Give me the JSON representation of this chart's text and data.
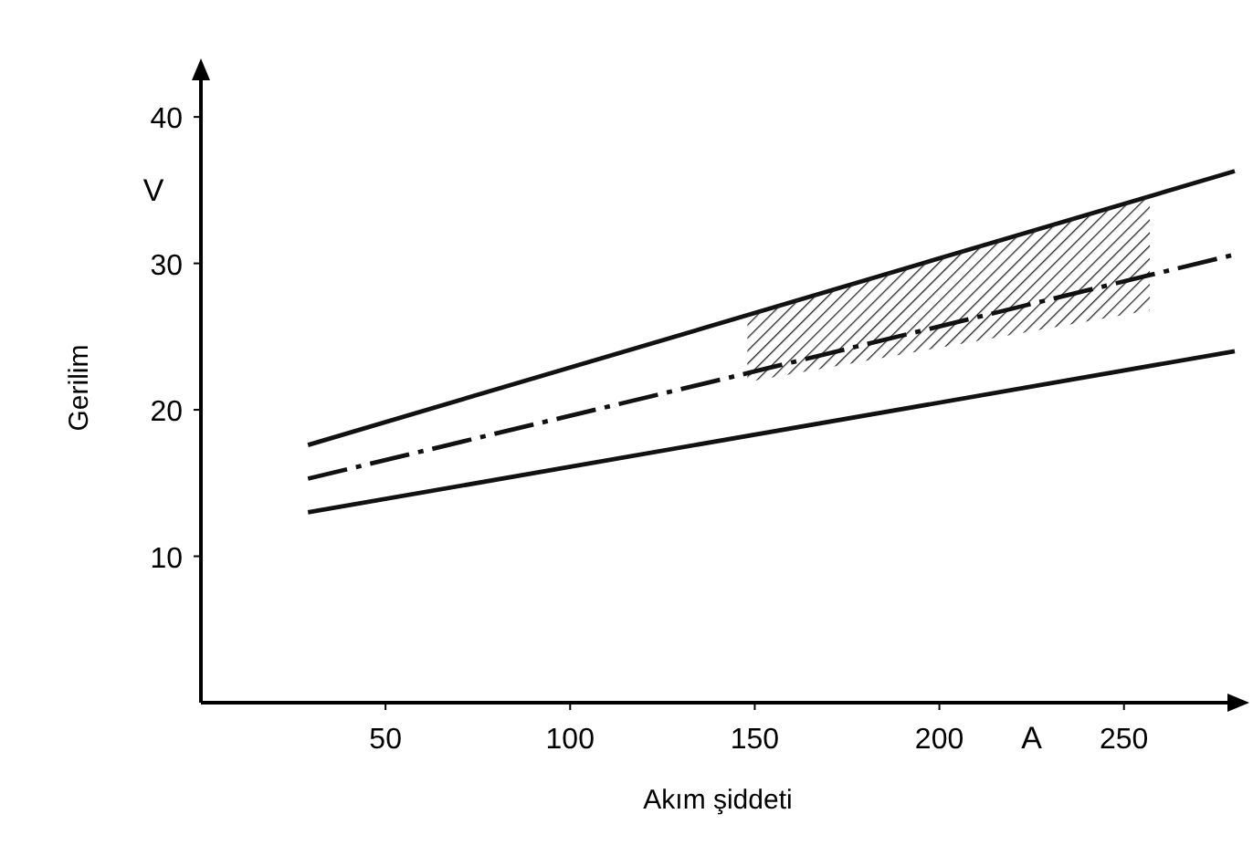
{
  "chart_data": {
    "type": "line",
    "xlabel": "Akım şiddeti",
    "ylabel": "Gerilim",
    "annotations": [
      "V",
      "A"
    ],
    "xlim": [
      0,
      280
    ],
    "ylim": [
      0,
      43
    ],
    "xticks": [
      50,
      100,
      150,
      200,
      250
    ],
    "yticks": [
      10,
      20,
      30,
      40
    ],
    "marker": "none",
    "series": [
      {
        "color": "#111111",
        "x": [
          29,
          280
        ],
        "values": [
          17.6,
          36.3
        ],
        "line_style": "solid"
      },
      {
        "color": "#111111",
        "x": [
          29,
          148,
          257,
          280
        ],
        "values": [
          15.3,
          22.5,
          29.2,
          30.6
        ],
        "lower": [
          null,
          21.9,
          26.8,
          null
        ],
        "upper": [
          null,
          26.5,
          34.6,
          null
        ],
        "line_style": "dashed"
      },
      {
        "color": "#111111",
        "x": [
          29,
          280
        ],
        "values": [
          13.0,
          24.0
        ],
        "line_style": "solid"
      }
    ]
  }
}
